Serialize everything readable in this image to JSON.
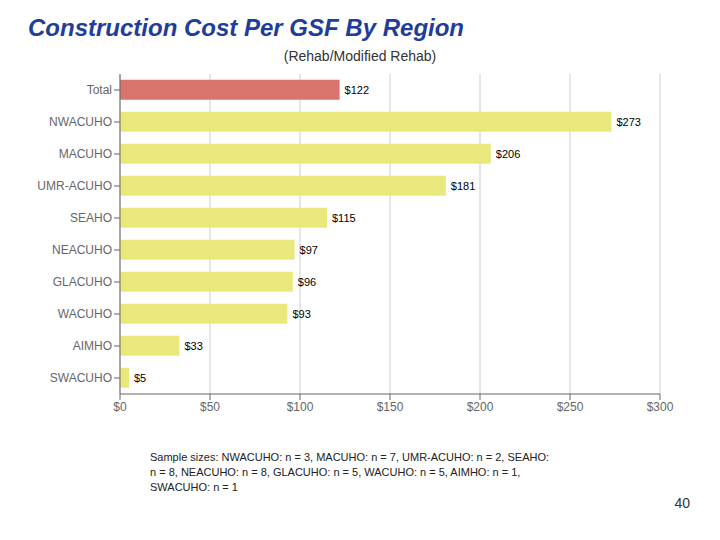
{
  "chart_data": {
    "type": "bar",
    "orientation": "horizontal",
    "title": "Construction Cost Per GSF By Region",
    "subtitle": "(Rehab/Modified Rehab)",
    "categories": [
      "Total",
      "NWACUHO",
      "MACUHO",
      "UMR-ACUHO",
      "SEAHO",
      "NEACUHO",
      "GLACUHO",
      "WACUHO",
      "AIMHO",
      "SWACUHO"
    ],
    "values": [
      122,
      273,
      206,
      181,
      115,
      97,
      96,
      93,
      33,
      5
    ],
    "value_labels": [
      "$122",
      "$273",
      "$206",
      "$181",
      "$115",
      "$97",
      "$96",
      "$93",
      "$33",
      "$5"
    ],
    "data_labels": true,
    "colors": [
      "#d9736e",
      "#e8e87c",
      "#e8e87c",
      "#e8e87c",
      "#e8e87c",
      "#e8e87c",
      "#e8e87c",
      "#e8e87c",
      "#e8e87c",
      "#e8e87c"
    ],
    "xlim": [
      0,
      300
    ],
    "xticks": [
      {
        "value": 0,
        "label": "$0"
      },
      {
        "value": 50,
        "label": "$50"
      },
      {
        "value": 100,
        "label": "$100"
      },
      {
        "value": 150,
        "label": "$150"
      },
      {
        "value": 200,
        "label": "$200"
      },
      {
        "value": 250,
        "label": "$250"
      },
      {
        "value": 300,
        "label": "$300"
      }
    ],
    "grid": true,
    "annotations": [
      "Sample sizes: NWACUHO: n = 3, MACUHO: n = 7, UMR-ACUHO: n = 2, SEAHO:\nn = 8, NEACUHO: n = 8, GLACUHO: n = 5, WACUHO: n = 5, AIMHO: n = 1,\nSWACUHO: n = 1",
      "40"
    ]
  }
}
